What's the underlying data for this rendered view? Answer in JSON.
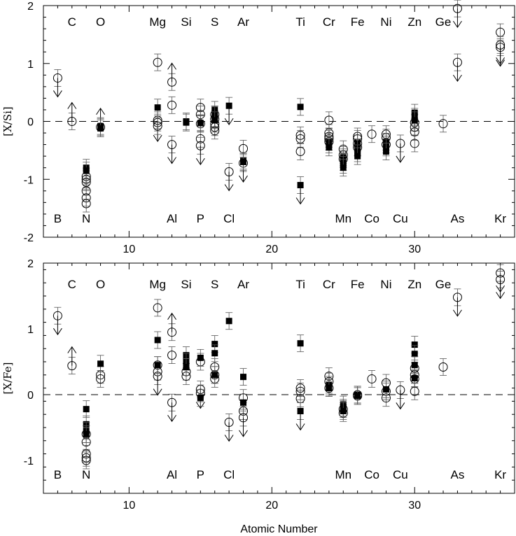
{
  "chart_data": [
    {
      "type": "scatter",
      "panel": "top",
      "ylabel": "[X/Si]",
      "xlabel": "",
      "xlim": [
        4,
        37
      ],
      "ylim": [
        -2,
        2
      ],
      "xticks": [
        10,
        20,
        30
      ],
      "xtick_labels": [
        "10",
        "20",
        "30"
      ],
      "yticks": [
        -2,
        -1,
        0,
        1,
        2
      ],
      "ytick_labels": [
        "-2",
        "-1",
        "0",
        "1",
        "2"
      ],
      "reference_line": 0,
      "elements_top_row": [
        {
          "symbol": "C",
          "z": 6
        },
        {
          "symbol": "O",
          "z": 8
        },
        {
          "symbol": "Mg",
          "z": 12
        },
        {
          "symbol": "Si",
          "z": 14
        },
        {
          "symbol": "S",
          "z": 16
        },
        {
          "symbol": "Ar",
          "z": 18
        },
        {
          "symbol": "Ti",
          "z": 22
        },
        {
          "symbol": "Cr",
          "z": 24
        },
        {
          "symbol": "Fe",
          "z": 26
        },
        {
          "symbol": "Ni",
          "z": 28
        },
        {
          "symbol": "Zn",
          "z": 30
        },
        {
          "symbol": "Ge",
          "z": 32
        }
      ],
      "elements_bottom_row": [
        {
          "symbol": "B",
          "z": 5
        },
        {
          "symbol": "N",
          "z": 7
        },
        {
          "symbol": "Al",
          "z": 13
        },
        {
          "symbol": "P",
          "z": 15
        },
        {
          "symbol": "Cl",
          "z": 17
        },
        {
          "symbol": "Mn",
          "z": 25
        },
        {
          "symbol": "Co",
          "z": 27
        },
        {
          "symbol": "Cu",
          "z": 29
        },
        {
          "symbol": "As",
          "z": 33
        },
        {
          "symbol": "Kr",
          "z": 36
        }
      ],
      "series": [
        {
          "marker": "open-circle",
          "points": [
            {
              "x": 5,
              "y": 0.75,
              "limit": "upper"
            },
            {
              "x": 6,
              "y": 0.0,
              "limit": "lower"
            },
            {
              "x": 7,
              "y": -0.95
            },
            {
              "x": 7,
              "y": -1.0
            },
            {
              "x": 7,
              "y": -1.05
            },
            {
              "x": 7,
              "y": -1.2
            },
            {
              "x": 7,
              "y": -1.32
            },
            {
              "x": 7,
              "y": -1.42
            },
            {
              "x": 8,
              "y": -0.1,
              "limit": "lower"
            },
            {
              "x": 12,
              "y": 1.02
            },
            {
              "x": 12,
              "y": 0.02
            },
            {
              "x": 12,
              "y": -0.02,
              "limit": "upper"
            },
            {
              "x": 12,
              "y": -0.08
            },
            {
              "x": 13,
              "y": 0.68,
              "limit": "lower"
            },
            {
              "x": 13,
              "y": 0.28
            },
            {
              "x": 13,
              "y": -0.4,
              "limit": "upper"
            },
            {
              "x": 15,
              "y": 0.24
            },
            {
              "x": 15,
              "y": 0.12
            },
            {
              "x": 15,
              "y": -0.04
            },
            {
              "x": 15,
              "y": -0.3
            },
            {
              "x": 15,
              "y": -0.42,
              "limit": "upper"
            },
            {
              "x": 16,
              "y": 0.12
            },
            {
              "x": 16,
              "y": 0.04
            },
            {
              "x": 16,
              "y": -0.04
            },
            {
              "x": 16,
              "y": -0.1
            },
            {
              "x": 16,
              "y": -0.16
            },
            {
              "x": 17,
              "y": -0.87,
              "limit": "upper"
            },
            {
              "x": 18,
              "y": -0.47
            },
            {
              "x": 18,
              "y": -0.72,
              "limit": "upper"
            },
            {
              "x": 22,
              "y": -0.24
            },
            {
              "x": 22,
              "y": -0.3
            },
            {
              "x": 22,
              "y": -0.52
            },
            {
              "x": 24,
              "y": 0.02
            },
            {
              "x": 24,
              "y": -0.2
            },
            {
              "x": 24,
              "y": -0.26
            },
            {
              "x": 24,
              "y": -0.3
            },
            {
              "x": 24,
              "y": -0.35
            },
            {
              "x": 25,
              "y": -0.48
            },
            {
              "x": 25,
              "y": -0.58
            },
            {
              "x": 25,
              "y": -0.65
            },
            {
              "x": 26,
              "y": -0.26
            },
            {
              "x": 26,
              "y": -0.3
            },
            {
              "x": 26,
              "y": -0.38
            },
            {
              "x": 26,
              "y": -0.45
            },
            {
              "x": 27,
              "y": -0.22
            },
            {
              "x": 28,
              "y": -0.22
            },
            {
              "x": 28,
              "y": -0.28
            },
            {
              "x": 28,
              "y": -0.4
            },
            {
              "x": 29,
              "y": -0.38,
              "limit": "upper"
            },
            {
              "x": 30,
              "y": -0.02
            },
            {
              "x": 30,
              "y": -0.1
            },
            {
              "x": 30,
              "y": -0.18
            },
            {
              "x": 30,
              "y": -0.38
            },
            {
              "x": 32,
              "y": -0.04
            },
            {
              "x": 33,
              "y": 1.95,
              "limit": "upper"
            },
            {
              "x": 33,
              "y": 1.02,
              "limit": "upper"
            },
            {
              "x": 36,
              "y": 1.54
            },
            {
              "x": 36,
              "y": 1.32,
              "limit": "upper"
            },
            {
              "x": 36,
              "y": 1.28,
              "limit": "upper"
            }
          ]
        },
        {
          "marker": "filled-square",
          "points": [
            {
              "x": 7,
              "y": -0.8
            },
            {
              "x": 7,
              "y": -0.85
            },
            {
              "x": 8,
              "y": -0.08
            },
            {
              "x": 8,
              "y": -0.12
            },
            {
              "x": 12,
              "y": 0.24
            },
            {
              "x": 14,
              "y": 0.0
            },
            {
              "x": 14,
              "y": -0.02
            },
            {
              "x": 15,
              "y": -0.03
            },
            {
              "x": 16,
              "y": 0.2
            },
            {
              "x": 16,
              "y": 0.12
            },
            {
              "x": 16,
              "y": 0.02
            },
            {
              "x": 17,
              "y": 0.27,
              "limit": "upper"
            },
            {
              "x": 18,
              "y": -0.68
            },
            {
              "x": 18,
              "y": -0.7
            },
            {
              "x": 22,
              "y": 0.25
            },
            {
              "x": 22,
              "y": -1.1,
              "limit": "upper"
            },
            {
              "x": 24,
              "y": -0.35
            },
            {
              "x": 24,
              "y": -0.4
            },
            {
              "x": 24,
              "y": -0.45
            },
            {
              "x": 25,
              "y": -0.62
            },
            {
              "x": 25,
              "y": -0.7
            },
            {
              "x": 25,
              "y": -0.75
            },
            {
              "x": 25,
              "y": -0.8
            },
            {
              "x": 26,
              "y": -0.38
            },
            {
              "x": 26,
              "y": -0.45
            },
            {
              "x": 26,
              "y": -0.55
            },
            {
              "x": 26,
              "y": -0.6
            },
            {
              "x": 28,
              "y": -0.35
            },
            {
              "x": 28,
              "y": -0.45
            },
            {
              "x": 28,
              "y": -0.52
            },
            {
              "x": 30,
              "y": 0.15
            },
            {
              "x": 30,
              "y": 0.08
            },
            {
              "x": 30,
              "y": 0.02
            }
          ]
        }
      ]
    },
    {
      "type": "scatter",
      "panel": "bottom",
      "ylabel": "[X/Fe]",
      "xlabel": "Atomic Number",
      "xlim": [
        4,
        37
      ],
      "ylim": [
        -1.5,
        2
      ],
      "xticks": [
        10,
        20,
        30
      ],
      "xtick_labels": [
        "10",
        "20",
        "30"
      ],
      "yticks": [
        -1,
        0,
        1,
        2
      ],
      "ytick_labels": [
        "-1",
        "0",
        "1",
        "2"
      ],
      "reference_line": 0,
      "elements_top_row": [
        {
          "symbol": "C",
          "z": 6
        },
        {
          "symbol": "O",
          "z": 8
        },
        {
          "symbol": "Mg",
          "z": 12
        },
        {
          "symbol": "Si",
          "z": 14
        },
        {
          "symbol": "S",
          "z": 16
        },
        {
          "symbol": "Ar",
          "z": 18
        },
        {
          "symbol": "Ti",
          "z": 22
        },
        {
          "symbol": "Cr",
          "z": 24
        },
        {
          "symbol": "Fe",
          "z": 26
        },
        {
          "symbol": "Ni",
          "z": 28
        },
        {
          "symbol": "Zn",
          "z": 30
        },
        {
          "symbol": "Ge",
          "z": 32
        }
      ],
      "elements_bottom_row": [
        {
          "symbol": "B",
          "z": 5
        },
        {
          "symbol": "N",
          "z": 7
        },
        {
          "symbol": "Al",
          "z": 13
        },
        {
          "symbol": "P",
          "z": 15
        },
        {
          "symbol": "Cl",
          "z": 17
        },
        {
          "symbol": "Mn",
          "z": 25
        },
        {
          "symbol": "Co",
          "z": 27
        },
        {
          "symbol": "Cu",
          "z": 29
        },
        {
          "symbol": "As",
          "z": 33
        },
        {
          "symbol": "Kr",
          "z": 36
        }
      ],
      "series": [
        {
          "marker": "open-circle",
          "points": [
            {
              "x": 5,
              "y": 1.2,
              "limit": "upper"
            },
            {
              "x": 6,
              "y": 0.44,
              "limit": "lower"
            },
            {
              "x": 7,
              "y": -0.6
            },
            {
              "x": 7,
              "y": -0.72
            },
            {
              "x": 7,
              "y": -0.9
            },
            {
              "x": 7,
              "y": -0.96
            },
            {
              "x": 7,
              "y": -1.0
            },
            {
              "x": 8,
              "y": 0.3
            },
            {
              "x": 8,
              "y": 0.24
            },
            {
              "x": 12,
              "y": 1.32
            },
            {
              "x": 12,
              "y": 0.45
            },
            {
              "x": 12,
              "y": 0.35
            },
            {
              "x": 12,
              "y": 0.28,
              "limit": "upper"
            },
            {
              "x": 13,
              "y": 0.95,
              "limit": "lower"
            },
            {
              "x": 13,
              "y": 0.6
            },
            {
              "x": 13,
              "y": -0.12,
              "limit": "upper"
            },
            {
              "x": 14,
              "y": 0.35
            },
            {
              "x": 14,
              "y": 0.28
            },
            {
              "x": 15,
              "y": 0.5
            },
            {
              "x": 15,
              "y": 0.08,
              "limit": "upper"
            },
            {
              "x": 15,
              "y": 0.02
            },
            {
              "x": 16,
              "y": 0.42
            },
            {
              "x": 16,
              "y": 0.3
            },
            {
              "x": 16,
              "y": 0.24
            },
            {
              "x": 17,
              "y": -0.42,
              "limit": "upper"
            },
            {
              "x": 18,
              "y": -0.05
            },
            {
              "x": 18,
              "y": -0.25
            },
            {
              "x": 18,
              "y": -0.35,
              "limit": "upper"
            },
            {
              "x": 22,
              "y": 0.1
            },
            {
              "x": 22,
              "y": 0.05
            },
            {
              "x": 22,
              "y": -0.06
            },
            {
              "x": 24,
              "y": 0.28
            },
            {
              "x": 24,
              "y": 0.2
            },
            {
              "x": 24,
              "y": 0.1
            },
            {
              "x": 25,
              "y": -0.22
            },
            {
              "x": 25,
              "y": -0.28
            },
            {
              "x": 26,
              "y": 0.0
            },
            {
              "x": 26,
              "y": -0.02
            },
            {
              "x": 27,
              "y": 0.24
            },
            {
              "x": 28,
              "y": 0.18
            },
            {
              "x": 28,
              "y": 0.05
            },
            {
              "x": 28,
              "y": -0.05
            },
            {
              "x": 29,
              "y": 0.07,
              "limit": "upper"
            },
            {
              "x": 30,
              "y": 0.4
            },
            {
              "x": 30,
              "y": 0.3
            },
            {
              "x": 30,
              "y": 0.24
            },
            {
              "x": 30,
              "y": 0.05
            },
            {
              "x": 32,
              "y": 0.42
            },
            {
              "x": 33,
              "y": 1.48,
              "limit": "upper"
            },
            {
              "x": 36,
              "y": 1.85,
              "limit": "upper"
            },
            {
              "x": 36,
              "y": 1.75,
              "limit": "upper"
            }
          ]
        },
        {
          "marker": "filled-square",
          "points": [
            {
              "x": 7,
              "y": -0.22
            },
            {
              "x": 7,
              "y": -0.45
            },
            {
              "x": 7,
              "y": -0.55
            },
            {
              "x": 7,
              "y": -0.6
            },
            {
              "x": 8,
              "y": 0.47
            },
            {
              "x": 12,
              "y": 0.83
            },
            {
              "x": 12,
              "y": 0.45
            },
            {
              "x": 14,
              "y": 0.6
            },
            {
              "x": 14,
              "y": 0.5
            },
            {
              "x": 14,
              "y": 0.42
            },
            {
              "x": 15,
              "y": 0.56
            },
            {
              "x": 15,
              "y": -0.05
            },
            {
              "x": 16,
              "y": 0.77
            },
            {
              "x": 16,
              "y": 0.63
            },
            {
              "x": 16,
              "y": 0.3
            },
            {
              "x": 17,
              "y": 1.12
            },
            {
              "x": 18,
              "y": 0.27
            },
            {
              "x": 18,
              "y": -0.12
            },
            {
              "x": 22,
              "y": 0.78
            },
            {
              "x": 22,
              "y": -0.25,
              "limit": "upper"
            },
            {
              "x": 24,
              "y": 0.15
            },
            {
              "x": 24,
              "y": 0.12
            },
            {
              "x": 24,
              "y": 0.1
            },
            {
              "x": 25,
              "y": -0.15
            },
            {
              "x": 25,
              "y": -0.2
            },
            {
              "x": 25,
              "y": -0.25
            },
            {
              "x": 26,
              "y": 0.0
            },
            {
              "x": 26,
              "y": -0.02
            },
            {
              "x": 28,
              "y": 0.08
            },
            {
              "x": 30,
              "y": 0.76
            },
            {
              "x": 30,
              "y": 0.62
            },
            {
              "x": 30,
              "y": 0.45
            },
            {
              "x": 30,
              "y": 0.25
            }
          ]
        }
      ]
    }
  ]
}
